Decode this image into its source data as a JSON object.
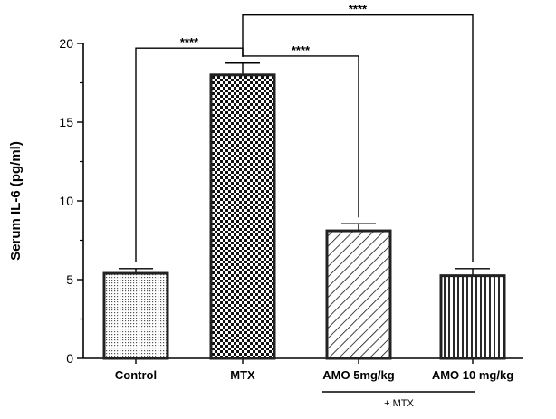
{
  "chart_data": {
    "type": "bar",
    "title": "",
    "xlabel": "",
    "ylabel": "Serum IL-6 (pg/ml)",
    "ylim": [
      0,
      20
    ],
    "yticks": [
      0,
      5,
      10,
      15,
      20
    ],
    "grid": false,
    "categories": [
      "Control",
      "MTX",
      "AMO 5mg/kg",
      "AMO 10 mg/kg"
    ],
    "values": [
      5.4,
      18.0,
      8.1,
      5.25
    ],
    "errors": [
      0.3,
      0.75,
      0.45,
      0.45
    ],
    "patterns": [
      "dots",
      "checker",
      "diagonal-hatch",
      "vertical-lines"
    ],
    "group_label": {
      "text": "+ MTX",
      "spans": [
        "AMO 5mg/kg",
        "AMO 10 mg/kg"
      ]
    },
    "significance": [
      {
        "from": "Control",
        "to": "MTX",
        "label": "****",
        "y": 19.7
      },
      {
        "from": "MTX",
        "to": "AMO 5mg/kg",
        "label": "****",
        "y": 19.2
      },
      {
        "from": "MTX",
        "to": "AMO 10 mg/kg",
        "label": "****",
        "y": 21.8
      }
    ]
  }
}
